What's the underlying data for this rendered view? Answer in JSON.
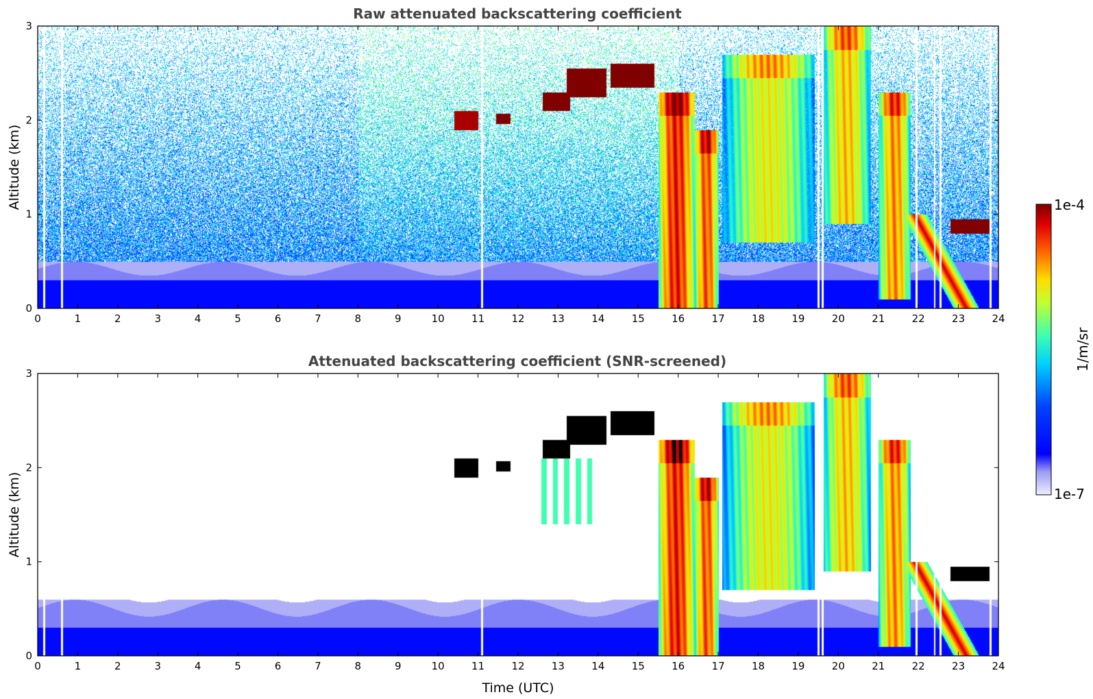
{
  "chart_data": [
    {
      "type": "heatmap",
      "title": "Raw attenuated backscattering coefficient",
      "xlabel": "",
      "ylabel": "Altitude (km)",
      "xlim": [
        0,
        24
      ],
      "ylim": [
        0,
        3
      ],
      "x_ticks": [
        "0",
        "1",
        "2",
        "3",
        "4",
        "5",
        "6",
        "7",
        "8",
        "9",
        "10",
        "11",
        "12",
        "13",
        "14",
        "15",
        "16",
        "17",
        "18",
        "19",
        "20",
        "21",
        "22",
        "23",
        "24"
      ],
      "y_ticks": [
        "0",
        "1",
        "2",
        "3"
      ],
      "noise_background": true,
      "surface_layer": {
        "top_km": 0.5,
        "intensity": 0.12
      },
      "data_gaps_hours": [
        0.15,
        0.6,
        11.1,
        19.5,
        19.6,
        21.95,
        22.4,
        22.55,
        23.8
      ],
      "cloud_layers": [
        {
          "kind": "thin",
          "t0": 10.4,
          "t1": 11.0,
          "z0": 1.9,
          "z1": 2.1,
          "intensity": 0.97
        },
        {
          "kind": "thin",
          "t0": 11.45,
          "t1": 11.8,
          "z0": 1.96,
          "z1": 2.07,
          "intensity": 1.0
        },
        {
          "kind": "thin",
          "t0": 12.6,
          "t1": 13.3,
          "z0": 2.1,
          "z1": 2.3,
          "intensity": 1.0
        },
        {
          "kind": "thin",
          "t0": 13.2,
          "t1": 14.2,
          "z0": 2.25,
          "z1": 2.55,
          "intensity": 1.0
        },
        {
          "kind": "thin",
          "t0": 14.3,
          "t1": 15.4,
          "z0": 2.35,
          "z1": 2.6,
          "intensity": 1.0
        },
        {
          "kind": "precip",
          "t0": 15.5,
          "t1": 16.4,
          "z0": 0.0,
          "z1": 2.3,
          "intensity": 0.9
        },
        {
          "kind": "precip",
          "t0": 16.4,
          "t1": 17.0,
          "z0": 0.0,
          "z1": 1.9,
          "intensity": 0.85
        },
        {
          "kind": "precip",
          "t0": 17.1,
          "t1": 19.4,
          "z0": 0.7,
          "z1": 2.7,
          "intensity": 0.7
        },
        {
          "kind": "precip",
          "t0": 19.6,
          "t1": 20.8,
          "z0": 0.9,
          "z1": 3.0,
          "intensity": 0.75
        },
        {
          "kind": "precip",
          "t0": 21.0,
          "t1": 21.8,
          "z0": 0.1,
          "z1": 2.3,
          "intensity": 0.8
        },
        {
          "kind": "slant",
          "t0": 21.9,
          "t1": 23.2,
          "z0": 0.0,
          "z1": 1.0,
          "intensity": 0.95
        },
        {
          "kind": "thin",
          "t0": 22.8,
          "t1": 23.8,
          "z0": 0.8,
          "z1": 0.95,
          "intensity": 1.0
        }
      ]
    },
    {
      "type": "heatmap",
      "title": "Attenuated backscattering coefficient (SNR-screened)",
      "xlabel": "Time (UTC)",
      "ylabel": "Altitude (km)",
      "xlim": [
        0,
        24
      ],
      "ylim": [
        0,
        3
      ],
      "x_ticks": [
        "0",
        "1",
        "2",
        "3",
        "4",
        "5",
        "6",
        "7",
        "8",
        "9",
        "10",
        "11",
        "12",
        "13",
        "14",
        "15",
        "16",
        "17",
        "18",
        "19",
        "20",
        "21",
        "22",
        "23",
        "24"
      ],
      "y_ticks": [
        "0",
        "1",
        "2",
        "3"
      ],
      "noise_background": false,
      "screened_fill": "#ffffff",
      "saturated_color": "#000000",
      "surface_layer": {
        "top_km": 0.6,
        "intensity": 0.12
      },
      "data_gaps_hours": [
        0.15,
        0.6,
        11.1,
        19.5,
        19.6,
        21.95,
        22.4,
        22.55,
        23.8
      ],
      "cloud_layers": [
        {
          "kind": "thin",
          "t0": 10.4,
          "t1": 11.0,
          "z0": 1.9,
          "z1": 2.1,
          "intensity": 1.05
        },
        {
          "kind": "thin",
          "t0": 11.45,
          "t1": 11.8,
          "z0": 1.96,
          "z1": 2.07,
          "intensity": 1.05
        },
        {
          "kind": "thin",
          "t0": 12.6,
          "t1": 13.3,
          "z0": 2.1,
          "z1": 2.3,
          "intensity": 1.05
        },
        {
          "kind": "thin",
          "t0": 13.2,
          "t1": 14.2,
          "z0": 2.25,
          "z1": 2.55,
          "intensity": 1.05
        },
        {
          "kind": "thin",
          "t0": 14.3,
          "t1": 15.4,
          "z0": 2.35,
          "z1": 2.6,
          "intensity": 1.05
        },
        {
          "kind": "fall",
          "t0": 12.5,
          "t1": 13.9,
          "z0": 1.4,
          "z1": 2.1,
          "intensity": 0.55
        },
        {
          "kind": "precip",
          "t0": 15.5,
          "t1": 16.4,
          "z0": 0.0,
          "z1": 2.3,
          "intensity": 0.9
        },
        {
          "kind": "precip",
          "t0": 16.4,
          "t1": 17.0,
          "z0": 0.0,
          "z1": 1.9,
          "intensity": 0.85
        },
        {
          "kind": "precip",
          "t0": 17.1,
          "t1": 19.4,
          "z0": 0.7,
          "z1": 2.7,
          "intensity": 0.7
        },
        {
          "kind": "precip",
          "t0": 19.6,
          "t1": 20.8,
          "z0": 0.9,
          "z1": 3.0,
          "intensity": 0.75
        },
        {
          "kind": "precip",
          "t0": 21.0,
          "t1": 21.8,
          "z0": 0.1,
          "z1": 2.3,
          "intensity": 0.8
        },
        {
          "kind": "slant",
          "t0": 21.9,
          "t1": 23.2,
          "z0": 0.0,
          "z1": 1.0,
          "intensity": 0.95
        },
        {
          "kind": "thin",
          "t0": 22.8,
          "t1": 23.8,
          "z0": 0.8,
          "z1": 0.95,
          "intensity": 1.05
        }
      ]
    }
  ],
  "colorbar": {
    "label": "1/m/sr",
    "min_label": "1e-7",
    "max_label": "1e-4",
    "colormap": "jet",
    "scale": "log"
  }
}
